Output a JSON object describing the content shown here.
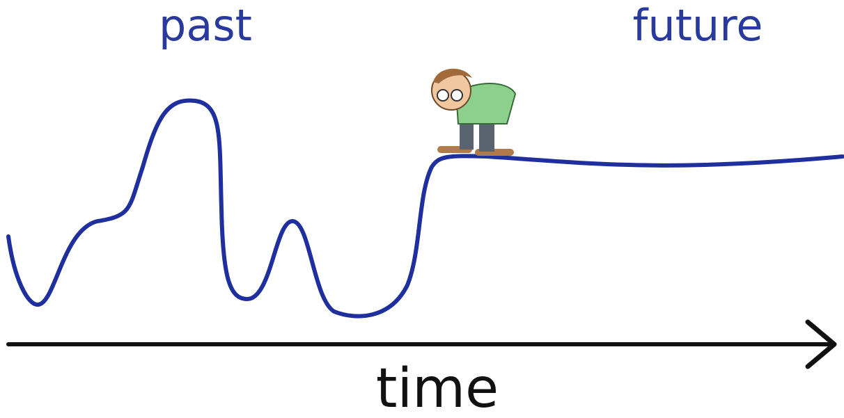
{
  "labels": {
    "past": "past",
    "future": "future"
  },
  "axis": {
    "label": "time"
  }
}
